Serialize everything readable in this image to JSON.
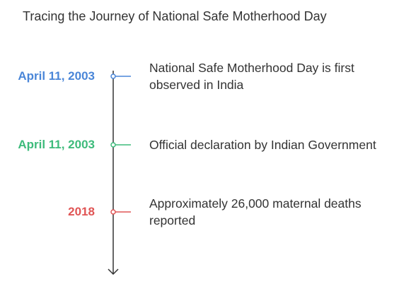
{
  "title": "Tracing the Journey of National Safe Motherhood Day",
  "events": [
    {
      "date": "April 11, 2003",
      "color": "#4a86d8",
      "lines": [
        "National Safe Motherhood Day is first",
        "observed in India"
      ]
    },
    {
      "date": "April 11, 2003",
      "color": "#3dbb7b",
      "lines": [
        "Official declaration by Indian Government"
      ]
    },
    {
      "date": "2018",
      "color": "#e05555",
      "lines": [
        "Approximately 26,000 maternal deaths",
        "reported"
      ]
    }
  ]
}
